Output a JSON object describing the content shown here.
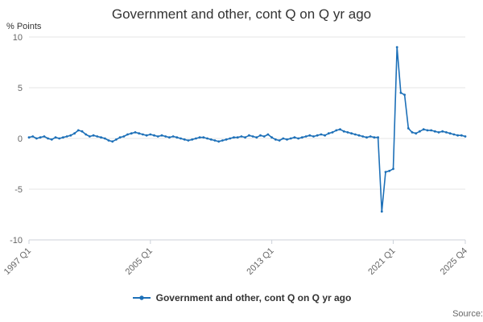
{
  "title": "Government and other, cont Q on Q yr ago",
  "ylabel": "% Points",
  "legend": {
    "label": "Government and other, cont Q on Q yr ago"
  },
  "source": "Source:",
  "chart_data": {
    "type": "line",
    "title": "Government and other, cont Q on Q yr ago",
    "series_name": "Government and other, cont Q on Q yr ago",
    "line_color": "#1d70b8",
    "grid_color": "#e6e6e6",
    "axis_color": "#ccd1d9",
    "tick_label_color": "#666666",
    "x_start": "1997 Q1",
    "x_end": "2025 Q4",
    "frequency": "quarterly",
    "ylabel": "% Points",
    "ylim": [
      -10,
      10
    ],
    "yticks": [
      10,
      5,
      0,
      -5,
      -10
    ],
    "x_ticks": [
      {
        "index": 0,
        "label": "1997 Q1"
      },
      {
        "index": 32,
        "label": "2005 Q1"
      },
      {
        "index": 64,
        "label": "2013 Q1"
      },
      {
        "index": 96,
        "label": "2021 Q1"
      },
      {
        "index": 115,
        "label": "2025 Q4"
      }
    ],
    "values": [
      0.1,
      0.2,
      0.0,
      0.1,
      0.2,
      0.0,
      -0.1,
      0.1,
      0.0,
      0.1,
      0.2,
      0.3,
      0.5,
      0.8,
      0.7,
      0.4,
      0.2,
      0.3,
      0.2,
      0.1,
      0.0,
      -0.2,
      -0.3,
      -0.1,
      0.1,
      0.2,
      0.4,
      0.5,
      0.6,
      0.5,
      0.4,
      0.3,
      0.4,
      0.3,
      0.2,
      0.3,
      0.2,
      0.1,
      0.2,
      0.1,
      0.0,
      -0.1,
      -0.2,
      -0.1,
      0.0,
      0.1,
      0.1,
      0.0,
      -0.1,
      -0.2,
      -0.3,
      -0.2,
      -0.1,
      0.0,
      0.1,
      0.1,
      0.2,
      0.1,
      0.3,
      0.2,
      0.1,
      0.3,
      0.2,
      0.4,
      0.1,
      -0.1,
      -0.2,
      0.0,
      -0.1,
      0.0,
      0.1,
      0.0,
      0.1,
      0.2,
      0.3,
      0.2,
      0.3,
      0.4,
      0.3,
      0.5,
      0.6,
      0.8,
      0.9,
      0.7,
      0.6,
      0.5,
      0.4,
      0.3,
      0.2,
      0.1,
      0.2,
      0.1,
      0.1,
      -7.2,
      -3.3,
      -3.2,
      -3.0,
      9.0,
      4.5,
      4.3,
      1.0,
      0.6,
      0.5,
      0.7,
      0.9,
      0.8,
      0.8,
      0.7,
      0.6,
      0.7,
      0.6,
      0.5,
      0.4,
      0.3,
      0.3,
      0.2
    ]
  }
}
